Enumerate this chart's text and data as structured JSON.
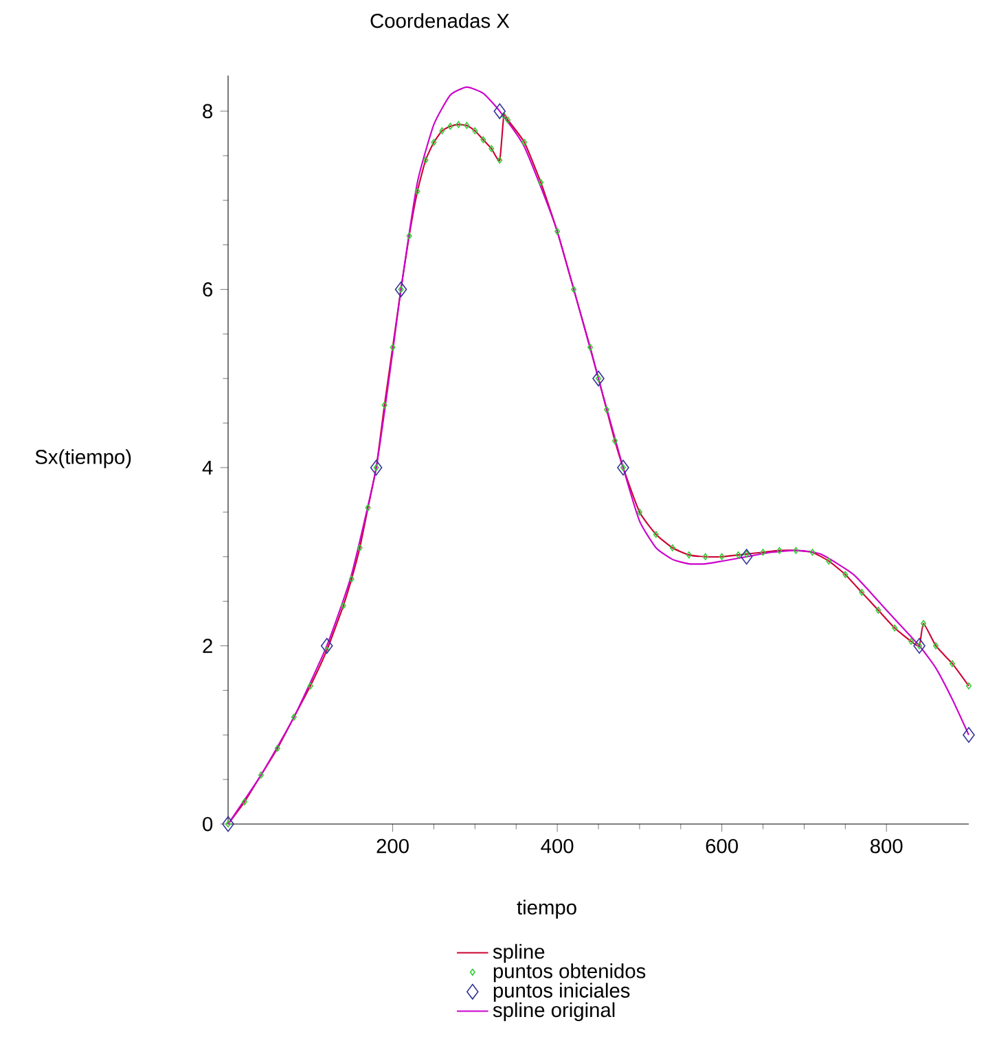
{
  "chart_data": {
    "type": "line",
    "title": "Coordenadas X",
    "xlabel": "tiempo",
    "ylabel": "Sx(tiempo)",
    "xlim": [
      0,
      900
    ],
    "ylim": [
      0,
      8.4
    ],
    "xticks": [
      200,
      400,
      600,
      800
    ],
    "yticks": [
      0,
      2,
      4,
      6,
      8
    ],
    "grid": false,
    "legend": "bottom",
    "series": [
      {
        "name": "spline",
        "color": "#cc0033",
        "marker": "none",
        "x": [
          0,
          20,
          40,
          60,
          80,
          100,
          120,
          140,
          150,
          160,
          170,
          180,
          190,
          200,
          210,
          220,
          230,
          240,
          250,
          260,
          270,
          280,
          290,
          300,
          310,
          320,
          330,
          335,
          340,
          360,
          380,
          400,
          420,
          440,
          450,
          460,
          470,
          480,
          500,
          520,
          540,
          560,
          580,
          600,
          620,
          630,
          650,
          670,
          690,
          710,
          730,
          750,
          770,
          790,
          810,
          830,
          840,
          845,
          860,
          880,
          900
        ],
        "values": [
          0,
          0.25,
          0.55,
          0.85,
          1.2,
          1.55,
          1.95,
          2.45,
          2.75,
          3.1,
          3.55,
          4.0,
          4.7,
          5.35,
          6.0,
          6.6,
          7.1,
          7.45,
          7.65,
          7.78,
          7.83,
          7.85,
          7.84,
          7.78,
          7.68,
          7.58,
          7.45,
          7.95,
          7.9,
          7.65,
          7.2,
          6.65,
          6.0,
          5.35,
          5.0,
          4.65,
          4.3,
          4.0,
          3.5,
          3.25,
          3.1,
          3.02,
          3.0,
          3.0,
          3.02,
          3.03,
          3.05,
          3.07,
          3.07,
          3.05,
          2.95,
          2.8,
          2.6,
          2.4,
          2.2,
          2.05,
          2.0,
          2.25,
          2.0,
          1.8,
          1.55
        ]
      },
      {
        "name": "puntos obtenidos",
        "type": "scatter",
        "color": "#33cc33",
        "marker": "diamond",
        "x": [
          0,
          20,
          40,
          60,
          80,
          100,
          120,
          140,
          150,
          160,
          170,
          180,
          190,
          200,
          210,
          220,
          230,
          240,
          250,
          260,
          270,
          280,
          290,
          300,
          310,
          320,
          330,
          335,
          340,
          360,
          380,
          400,
          420,
          440,
          450,
          460,
          470,
          480,
          500,
          520,
          540,
          560,
          580,
          600,
          620,
          630,
          650,
          670,
          690,
          710,
          730,
          750,
          770,
          790,
          810,
          830,
          840,
          845,
          860,
          880,
          900
        ],
        "values": [
          0,
          0.25,
          0.55,
          0.85,
          1.2,
          1.55,
          1.95,
          2.45,
          2.75,
          3.1,
          3.55,
          4.0,
          4.7,
          5.35,
          6.0,
          6.6,
          7.1,
          7.45,
          7.65,
          7.78,
          7.83,
          7.85,
          7.84,
          7.78,
          7.68,
          7.58,
          7.45,
          7.95,
          7.9,
          7.65,
          7.2,
          6.65,
          6.0,
          5.35,
          5.0,
          4.65,
          4.3,
          4.0,
          3.5,
          3.25,
          3.1,
          3.02,
          3.0,
          3.0,
          3.02,
          3.03,
          3.05,
          3.07,
          3.07,
          3.05,
          2.95,
          2.8,
          2.6,
          2.4,
          2.2,
          2.05,
          2.0,
          2.25,
          2.0,
          1.8,
          1.55
        ]
      },
      {
        "name": "puntos iniciales",
        "type": "scatter",
        "color": "#333399",
        "marker": "diamond",
        "x": [
          0,
          120,
          180,
          210,
          330,
          450,
          480,
          630,
          840,
          900
        ],
        "values": [
          0,
          2,
          4,
          6,
          8,
          5,
          4,
          3,
          2,
          1
        ]
      },
      {
        "name": "spline original",
        "color": "#cc00cc",
        "marker": "none",
        "x": [
          0,
          40,
          80,
          120,
          150,
          180,
          200,
          210,
          230,
          250,
          270,
          290,
          310,
          330,
          360,
          400,
          450,
          480,
          500,
          520,
          540,
          560,
          580,
          600,
          630,
          660,
          690,
          720,
          760,
          800,
          840,
          860,
          880,
          900
        ],
        "values": [
          0,
          0.55,
          1.2,
          2.0,
          2.8,
          4.0,
          5.3,
          6.0,
          7.2,
          7.85,
          8.18,
          8.27,
          8.2,
          8.0,
          7.6,
          6.65,
          5.0,
          4.0,
          3.4,
          3.1,
          2.97,
          2.92,
          2.92,
          2.95,
          3.0,
          3.05,
          3.07,
          3.03,
          2.8,
          2.4,
          2.0,
          1.75,
          1.4,
          1.0
        ]
      }
    ]
  }
}
